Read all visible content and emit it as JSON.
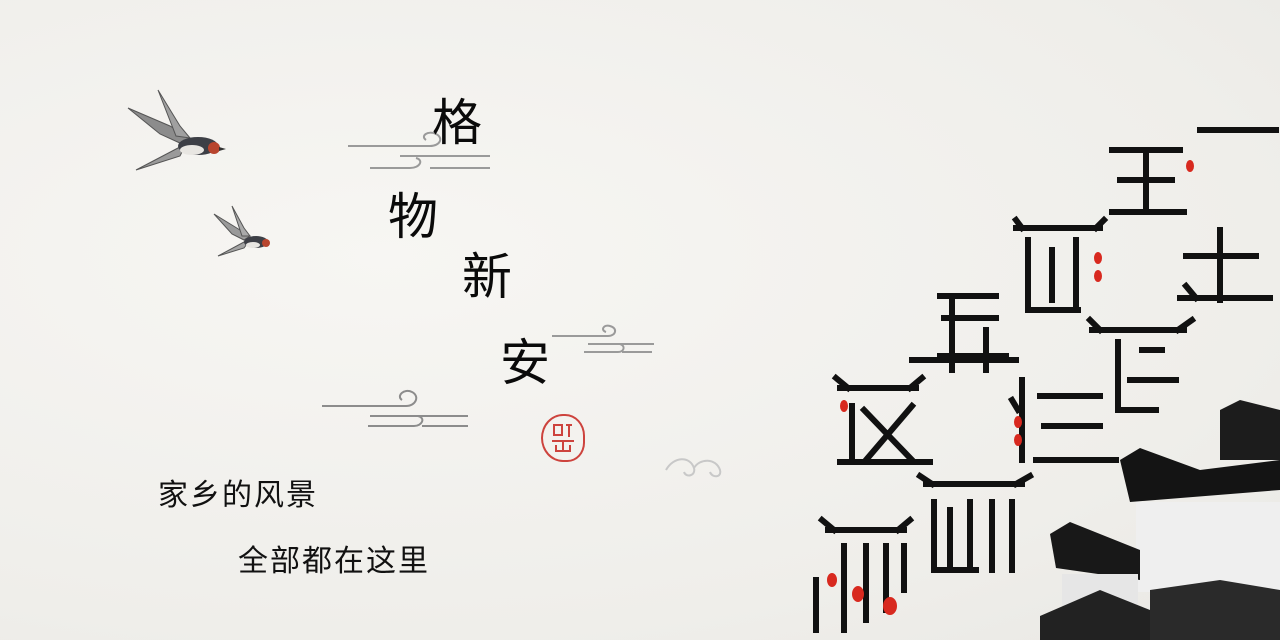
{
  "poster": {
    "title_chars": [
      "格",
      "物",
      "新",
      "安"
    ],
    "subtitle_line1": "家乡的风景",
    "subtitle_line2": "全部都在这里"
  },
  "colors": {
    "ink": "#0a0a0a",
    "seal_red": "#c9312a",
    "lantern_red": "#d8291f",
    "paper": "#f3f2ef"
  },
  "icons": [
    "swallow-bird-icon",
    "cloud-swirl-icon",
    "seal-stamp-icon",
    "lantern-icon",
    "huizhou-roof-icon"
  ]
}
